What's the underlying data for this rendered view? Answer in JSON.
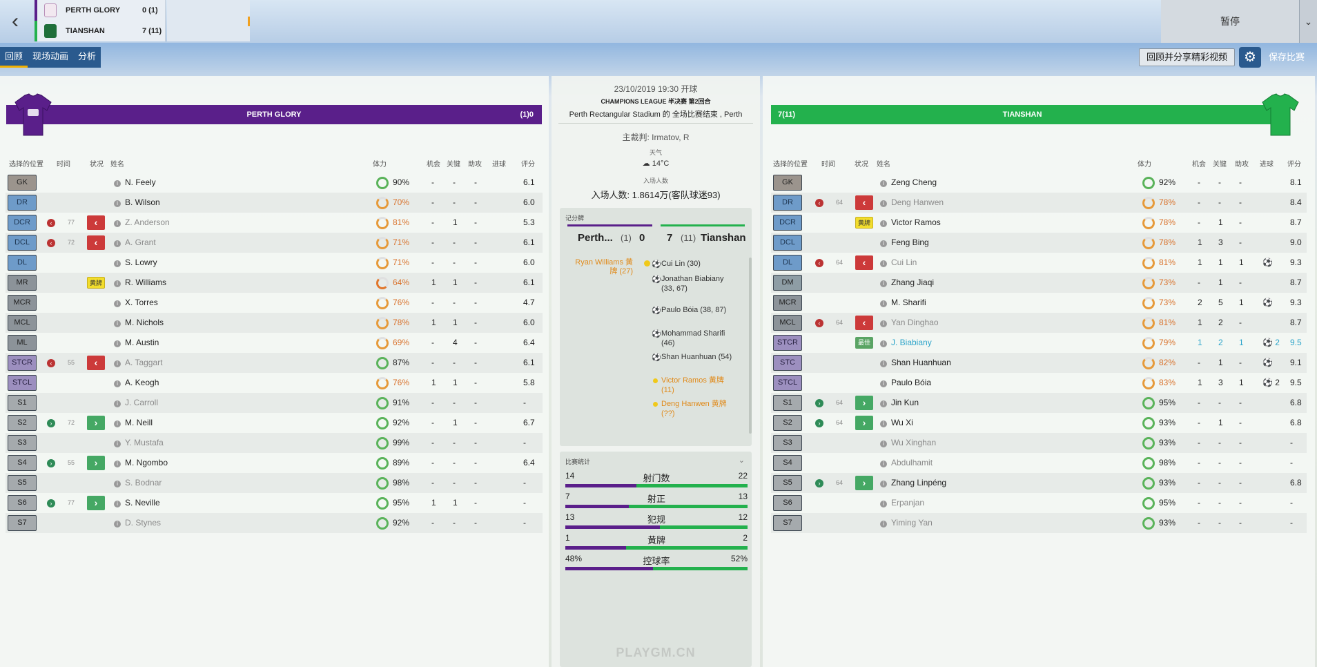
{
  "header": {
    "home": {
      "name": "PERTH GLORY",
      "score": "0 (1)",
      "color": "#5a1f8a"
    },
    "away": {
      "name": "TIANSHAN",
      "score": "7 (11)",
      "color": "#23b14d"
    },
    "pause_label": "暂停"
  },
  "tabs": [
    {
      "label": "回顾",
      "active": true
    },
    {
      "label": "现场动画",
      "active": false
    },
    {
      "label": "分析",
      "active": false
    }
  ],
  "actions": {
    "share_label": "回顾并分享精彩视频",
    "save_label": "保存比赛"
  },
  "columns": {
    "pos": "选择的位置",
    "time": "时间",
    "status": "状况",
    "name": "姓名",
    "fitness": "体力",
    "chances": "机会",
    "key": "关键",
    "assists": "助攻",
    "goals": "进球",
    "rating": "评分"
  },
  "home": {
    "name": "PERTH GLORY",
    "score_label": "(1)0",
    "color": "#5a1f8a",
    "players": [
      {
        "pos": "GK",
        "pclass": "gk",
        "time": "",
        "status": "",
        "name": "N. Feely",
        "dim": false,
        "fit": "90%",
        "fitc": "green",
        "ch": "-",
        "kp": "-",
        "as": "-",
        "gl": "",
        "rt": "6.1"
      },
      {
        "pos": "DR",
        "pclass": "def",
        "time": "",
        "status": "",
        "name": "B. Wilson",
        "dim": false,
        "fit": "70%",
        "fitc": "mid",
        "ch": "-",
        "kp": "-",
        "as": "-",
        "gl": "",
        "rt": "6.0"
      },
      {
        "pos": "DCR",
        "pclass": "def",
        "time": "77",
        "status": "out",
        "name": "Z. Anderson",
        "dim": true,
        "fit": "81%",
        "fitc": "mid",
        "ch": "-",
        "kp": "1",
        "as": "-",
        "gl": "",
        "rt": "5.3"
      },
      {
        "pos": "DCL",
        "pclass": "def",
        "time": "72",
        "status": "out",
        "name": "A. Grant",
        "dim": true,
        "fit": "71%",
        "fitc": "mid",
        "ch": "-",
        "kp": "-",
        "as": "-",
        "gl": "",
        "rt": "6.1"
      },
      {
        "pos": "DL",
        "pclass": "def",
        "time": "",
        "status": "",
        "name": "S. Lowry",
        "dim": false,
        "fit": "71%",
        "fitc": "mid",
        "ch": "-",
        "kp": "-",
        "as": "-",
        "gl": "",
        "rt": "6.0"
      },
      {
        "pos": "MR",
        "pclass": "mid",
        "time": "",
        "status": "yellow",
        "name": "R. Williams",
        "dim": false,
        "fit": "64%",
        "fitc": "low",
        "ch": "1",
        "kp": "1",
        "as": "-",
        "gl": "",
        "rt": "6.1"
      },
      {
        "pos": "MCR",
        "pclass": "mid",
        "time": "",
        "status": "",
        "name": "X. Torres",
        "dim": false,
        "fit": "76%",
        "fitc": "mid",
        "ch": "-",
        "kp": "-",
        "as": "-",
        "gl": "",
        "rt": "4.7"
      },
      {
        "pos": "MCL",
        "pclass": "mid",
        "time": "",
        "status": "",
        "name": "M. Nichols",
        "dim": false,
        "fit": "78%",
        "fitc": "mid",
        "ch": "1",
        "kp": "1",
        "as": "-",
        "gl": "",
        "rt": "6.0"
      },
      {
        "pos": "ML",
        "pclass": "mid",
        "time": "",
        "status": "",
        "name": "M. Austin",
        "dim": false,
        "fit": "69%",
        "fitc": "mid",
        "ch": "-",
        "kp": "4",
        "as": "-",
        "gl": "",
        "rt": "6.4"
      },
      {
        "pos": "STCR",
        "pclass": "att",
        "time": "55",
        "status": "out",
        "name": "A. Taggart",
        "dim": true,
        "fit": "87%",
        "fitc": "green",
        "ch": "-",
        "kp": "-",
        "as": "-",
        "gl": "",
        "rt": "6.1"
      },
      {
        "pos": "STCL",
        "pclass": "att",
        "time": "",
        "status": "",
        "name": "A. Keogh",
        "dim": false,
        "fit": "76%",
        "fitc": "mid",
        "ch": "1",
        "kp": "1",
        "as": "-",
        "gl": "",
        "rt": "5.8"
      },
      {
        "pos": "S1",
        "pclass": "sub",
        "time": "",
        "status": "",
        "name": "J. Carroll",
        "dim": true,
        "fit": "91%",
        "fitc": "green",
        "ch": "-",
        "kp": "-",
        "as": "-",
        "gl": "",
        "rt": "-"
      },
      {
        "pos": "S2",
        "pclass": "sub",
        "time": "72",
        "status": "in",
        "name": "M. Neill",
        "dim": false,
        "fit": "92%",
        "fitc": "green",
        "ch": "-",
        "kp": "1",
        "as": "-",
        "gl": "",
        "rt": "6.7"
      },
      {
        "pos": "S3",
        "pclass": "sub",
        "time": "",
        "status": "",
        "name": "Y. Mustafa",
        "dim": true,
        "fit": "99%",
        "fitc": "green",
        "ch": "-",
        "kp": "-",
        "as": "-",
        "gl": "",
        "rt": "-"
      },
      {
        "pos": "S4",
        "pclass": "sub",
        "time": "55",
        "status": "in",
        "name": "M. Ngombo",
        "dim": false,
        "fit": "89%",
        "fitc": "green",
        "ch": "-",
        "kp": "-",
        "as": "-",
        "gl": "",
        "rt": "6.4"
      },
      {
        "pos": "S5",
        "pclass": "sub",
        "time": "",
        "status": "",
        "name": "S. Bodnar",
        "dim": true,
        "fit": "98%",
        "fitc": "green",
        "ch": "-",
        "kp": "-",
        "as": "-",
        "gl": "",
        "rt": "-"
      },
      {
        "pos": "S6",
        "pclass": "sub",
        "time": "77",
        "status": "in",
        "name": "S. Neville",
        "dim": false,
        "fit": "95%",
        "fitc": "green",
        "ch": "1",
        "kp": "1",
        "as": "-",
        "gl": "",
        "rt": "-"
      },
      {
        "pos": "S7",
        "pclass": "sub",
        "time": "",
        "status": "",
        "name": "D. Stynes",
        "dim": true,
        "fit": "92%",
        "fitc": "green",
        "ch": "-",
        "kp": "-",
        "as": "-",
        "gl": "",
        "rt": "-"
      }
    ]
  },
  "away": {
    "name": "TIANSHAN",
    "score_label": "7(11)",
    "color": "#23b14d",
    "players": [
      {
        "pos": "GK",
        "pclass": "gk",
        "time": "",
        "status": "",
        "name": "Zeng Cheng",
        "dim": false,
        "fit": "92%",
        "fitc": "green",
        "ch": "-",
        "kp": "-",
        "as": "-",
        "gl": "",
        "rt": "8.1"
      },
      {
        "pos": "DR",
        "pclass": "def",
        "time": "64",
        "status": "out",
        "name": "Deng Hanwen",
        "dim": true,
        "fit": "78%",
        "fitc": "mid",
        "ch": "-",
        "kp": "-",
        "as": "-",
        "gl": "",
        "rt": "8.4"
      },
      {
        "pos": "DCR",
        "pclass": "def",
        "time": "",
        "status": "yellow",
        "name": "Victor Ramos",
        "dim": false,
        "fit": "78%",
        "fitc": "mid",
        "ch": "-",
        "kp": "1",
        "as": "-",
        "gl": "",
        "rt": "8.7"
      },
      {
        "pos": "DCL",
        "pclass": "def",
        "time": "",
        "status": "",
        "name": "Feng Bing",
        "dim": false,
        "fit": "78%",
        "fitc": "mid",
        "ch": "1",
        "kp": "3",
        "as": "-",
        "gl": "",
        "rt": "9.0"
      },
      {
        "pos": "DL",
        "pclass": "def",
        "time": "64",
        "status": "out",
        "name": "Cui Lin",
        "dim": true,
        "fit": "81%",
        "fitc": "mid",
        "ch": "1",
        "kp": "1",
        "as": "1",
        "gl": "⚽",
        "rt": "9.3"
      },
      {
        "pos": "DM",
        "pclass": "dm",
        "time": "",
        "status": "",
        "name": "Zhang Jiaqi",
        "dim": false,
        "fit": "73%",
        "fitc": "mid",
        "ch": "-",
        "kp": "1",
        "as": "-",
        "gl": "",
        "rt": "8.7"
      },
      {
        "pos": "MCR",
        "pclass": "mid",
        "time": "",
        "status": "",
        "name": "M. Sharifi",
        "dim": false,
        "fit": "73%",
        "fitc": "mid",
        "ch": "2",
        "kp": "5",
        "as": "1",
        "gl": "⚽",
        "rt": "9.3"
      },
      {
        "pos": "MCL",
        "pclass": "mid",
        "time": "64",
        "status": "out",
        "name": "Yan Dinghao",
        "dim": true,
        "fit": "81%",
        "fitc": "mid",
        "ch": "1",
        "kp": "2",
        "as": "-",
        "gl": "",
        "rt": "8.7"
      },
      {
        "pos": "STCR",
        "pclass": "att",
        "time": "",
        "status": "best",
        "name": "J. Biabiany",
        "dim": false,
        "cyan": true,
        "fit": "79%",
        "fitc": "mid",
        "ch": "1",
        "kp": "2",
        "as": "1",
        "gl": "⚽ 2",
        "rt": "9.5"
      },
      {
        "pos": "STC",
        "pclass": "att",
        "time": "",
        "status": "",
        "name": "Shan Huanhuan",
        "dim": false,
        "fit": "82%",
        "fitc": "mid",
        "ch": "-",
        "kp": "1",
        "as": "-",
        "gl": "⚽",
        "rt": "9.1"
      },
      {
        "pos": "STCL",
        "pclass": "att",
        "time": "",
        "status": "",
        "name": "Paulo Bóia",
        "dim": false,
        "fit": "83%",
        "fitc": "mid",
        "ch": "1",
        "kp": "3",
        "as": "1",
        "gl": "⚽ 2",
        "rt": "9.5"
      },
      {
        "pos": "S1",
        "pclass": "sub",
        "time": "64",
        "status": "in",
        "name": "Jin Kun",
        "dim": false,
        "fit": "95%",
        "fitc": "green",
        "ch": "-",
        "kp": "-",
        "as": "-",
        "gl": "",
        "rt": "6.8"
      },
      {
        "pos": "S2",
        "pclass": "sub",
        "time": "64",
        "status": "in",
        "name": "Wu Xi",
        "dim": false,
        "fit": "93%",
        "fitc": "green",
        "ch": "-",
        "kp": "1",
        "as": "-",
        "gl": "",
        "rt": "6.8"
      },
      {
        "pos": "S3",
        "pclass": "sub",
        "time": "",
        "status": "",
        "name": "Wu Xinghan",
        "dim": true,
        "fit": "93%",
        "fitc": "green",
        "ch": "-",
        "kp": "-",
        "as": "-",
        "gl": "",
        "rt": "-"
      },
      {
        "pos": "S4",
        "pclass": "sub",
        "time": "",
        "status": "",
        "name": "Abdulhamit",
        "dim": true,
        "fit": "98%",
        "fitc": "green",
        "ch": "-",
        "kp": "-",
        "as": "-",
        "gl": "",
        "rt": "-"
      },
      {
        "pos": "S5",
        "pclass": "sub",
        "time": "64",
        "status": "in",
        "name": "Zhang Linpéng",
        "dim": false,
        "fit": "93%",
        "fitc": "green",
        "ch": "-",
        "kp": "-",
        "as": "-",
        "gl": "",
        "rt": "6.8"
      },
      {
        "pos": "S6",
        "pclass": "sub",
        "time": "",
        "status": "",
        "name": "Erpanjan",
        "dim": true,
        "fit": "95%",
        "fitc": "green",
        "ch": "-",
        "kp": "-",
        "as": "-",
        "gl": "",
        "rt": "-"
      },
      {
        "pos": "S7",
        "pclass": "sub",
        "time": "",
        "status": "",
        "name": "Yiming Yan",
        "dim": true,
        "fit": "93%",
        "fitc": "green",
        "ch": "-",
        "kp": "-",
        "as": "-",
        "gl": "",
        "rt": "-"
      }
    ]
  },
  "match": {
    "date": "23/10/2019 19:30 开球",
    "competition": "CHAMPIONS LEAGUE 半决赛 第2回合",
    "venue": "Perth Rectangular Stadium 的 全场比赛结束 , Perth",
    "referee": "主裁判: Irmatov, R",
    "weather_label": "天气",
    "weather": "14°C",
    "attendance_label": "入场人数",
    "attendance": "入场人数: 1.8614万(客队球迷93)"
  },
  "scorecard": {
    "title": "记分牌",
    "home_short": "Perth...",
    "home_pen": "(1)",
    "home_goals": "0",
    "away_goals": "7",
    "away_pen": "(11)",
    "away_short": "Tianshan",
    "home_events": [
      "Ryan Williams 黄牌 (27)"
    ],
    "away_events": [
      {
        "type": "goal",
        "text": "Cui Lin (30)"
      },
      {
        "type": "goal",
        "text": "Jonathan Biabiany (33, 67)"
      },
      {
        "type": "goal",
        "text": "Paulo Bóia (38, 87)"
      },
      {
        "type": "goal",
        "text": "Mohammad Sharifi (46)"
      },
      {
        "type": "goal",
        "text": "Shan Huanhuan (54)"
      },
      {
        "type": "yellow",
        "text": "Victor Ramos 黄牌 (11)"
      },
      {
        "type": "yellow",
        "text": "Deng Hanwen 黄牌 (??)"
      }
    ]
  },
  "stats": {
    "title": "比赛统计",
    "rows": [
      {
        "label": "射门数",
        "home": "14",
        "away": "22",
        "home_share": 0.389
      },
      {
        "label": "射正",
        "home": "7",
        "away": "13",
        "home_share": 0.35
      },
      {
        "label": "犯规",
        "home": "13",
        "away": "12",
        "home_share": 0.52
      },
      {
        "label": "黄牌",
        "home": "1",
        "away": "2",
        "home_share": 0.333
      },
      {
        "label": "控球率",
        "home": "48%",
        "away": "52%",
        "home_share": 0.48
      }
    ]
  },
  "watermark": "PLAYGM.CN"
}
